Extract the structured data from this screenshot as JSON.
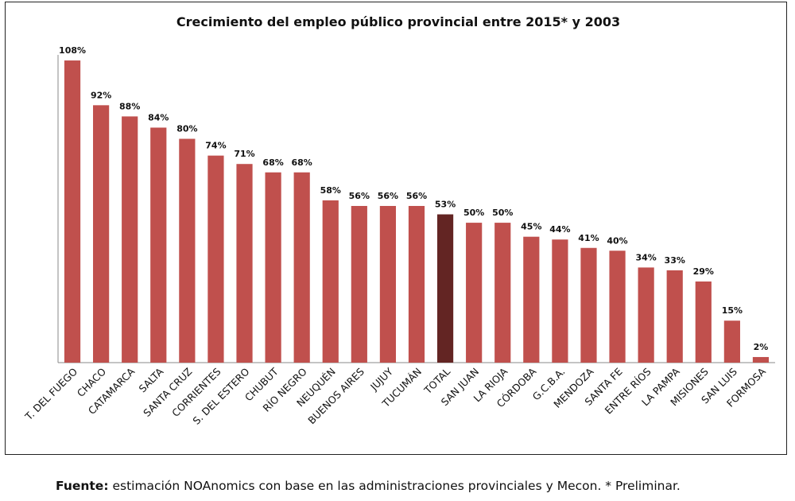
{
  "chart_data": {
    "type": "bar",
    "title": "Crecimiento del empleo público provincial entre 2015* y 2003",
    "categories": [
      "T. DEL FUEGO",
      "CHACO",
      "CATAMARCA",
      "SALTA",
      "SANTA CRUZ",
      "CORRIENTES",
      "S. DEL ESTERO",
      "CHUBUT",
      "RÍO NEGRO",
      "NEUQUÉN",
      "BUENOS AIRES",
      "JUJUY",
      "TUCUMÁN",
      "TOTAL",
      "SAN JUAN",
      "LA RIOJA",
      "CÓRDOBA",
      "G.C.B.A.",
      "MENDOZA",
      "SANTA FE",
      "ENTRE RÍOS",
      "LA PAMPA",
      "MISIONES",
      "SAN LUIS",
      "FORMOSA"
    ],
    "values": [
      108,
      92,
      88,
      84,
      80,
      74,
      71,
      68,
      68,
      58,
      56,
      56,
      56,
      53,
      50,
      50,
      45,
      44,
      41,
      40,
      34,
      33,
      29,
      15,
      2
    ],
    "data_labels": [
      "108%",
      "92%",
      "88%",
      "84%",
      "80%",
      "74%",
      "71%",
      "68%",
      "68%",
      "58%",
      "56%",
      "56%",
      "56%",
      "53%",
      "50%",
      "50%",
      "45%",
      "44%",
      "41%",
      "40%",
      "34%",
      "33%",
      "29%",
      "15%",
      "2%"
    ],
    "highlight_category": "TOTAL",
    "colors": {
      "bar": "#c0504d",
      "highlight": "#632523",
      "axis": "#888888"
    },
    "ylim": [
      0,
      110
    ],
    "xlabel": "",
    "ylabel": "",
    "grid": false,
    "legend": "none"
  },
  "footer": {
    "source_label": "Fuente:",
    "source_text": " estimación NOAnomics con base en las administraciones provinciales y Mecon. * Preliminar."
  }
}
